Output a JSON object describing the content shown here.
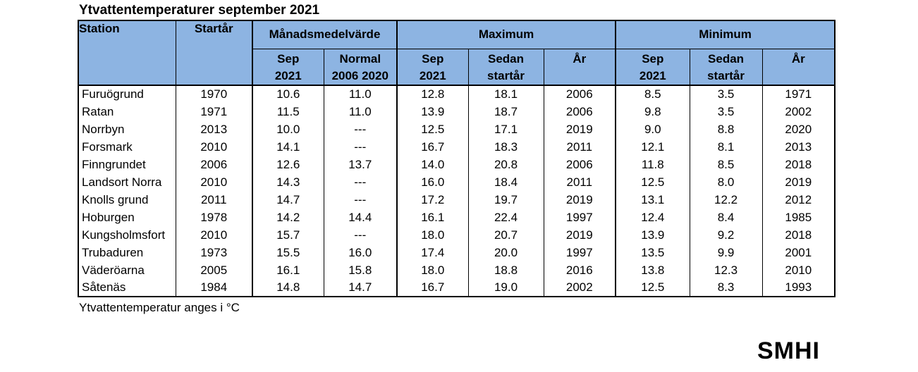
{
  "page": {
    "title": "Ytvattentemperaturer september 2021",
    "footer_note": "Ytvattentemperatur anges i °C",
    "logo_text": "SMHI"
  },
  "colors": {
    "header_bg": "#8DB4E2",
    "border": "#000000",
    "background": "#FFFFFF"
  },
  "header": {
    "station": "Station",
    "startyear": "Startår",
    "groups": [
      {
        "label": "Månadsmedelvärde"
      },
      {
        "label": "Maximum"
      },
      {
        "label": "Minimum"
      }
    ],
    "sub": [
      {
        "line1": "Sep",
        "line2": "2021"
      },
      {
        "line1": "Normal",
        "line2": "2006 2020"
      },
      {
        "line1": "Sep",
        "line2": "2021"
      },
      {
        "line1": "Sedan",
        "line2": "startår"
      },
      {
        "line1": "År",
        "line2": ""
      },
      {
        "line1": "Sep",
        "line2": "2021"
      },
      {
        "line1": "Sedan",
        "line2": "startår"
      },
      {
        "line1": "År",
        "line2": ""
      }
    ]
  },
  "chart_data": {
    "type": "table",
    "title": "Ytvattentemperaturer september 2021",
    "note": "Ytvattentemperatur anges i °C",
    "column_groups": [
      {
        "label": "",
        "span": [
          "Station",
          "Startår"
        ]
      },
      {
        "label": "Månadsmedelvärde",
        "span": [
          "Sep 2021",
          "Normal 2006 2020"
        ]
      },
      {
        "label": "Maximum",
        "span": [
          "Sep 2021",
          "Sedan startår",
          "År"
        ]
      },
      {
        "label": "Minimum",
        "span": [
          "Sep 2021",
          "Sedan startår",
          "År"
        ]
      }
    ],
    "columns": [
      "Station",
      "Startår",
      "Månadsmedelvärde Sep 2021",
      "Månadsmedelvärde Normal 2006 2020",
      "Maximum Sep 2021",
      "Maximum Sedan startår",
      "Maximum År",
      "Minimum Sep 2021",
      "Minimum Sedan startår",
      "Minimum År"
    ],
    "rows": [
      [
        "Furuögrund",
        "1970",
        "10.6",
        "11.0",
        "12.8",
        "18.1",
        "2006",
        "8.5",
        "3.5",
        "1971"
      ],
      [
        "Ratan",
        "1971",
        "11.5",
        "11.0",
        "13.9",
        "18.7",
        "2006",
        "9.8",
        "3.5",
        "2002"
      ],
      [
        "Norrbyn",
        "2013",
        "10.0",
        "---",
        "12.5",
        "17.1",
        "2019",
        "9.0",
        "8.8",
        "2020"
      ],
      [
        "Forsmark",
        "2010",
        "14.1",
        "---",
        "16.7",
        "18.3",
        "2011",
        "12.1",
        "8.1",
        "2013"
      ],
      [
        "Finngrundet",
        "2006",
        "12.6",
        "13.7",
        "14.0",
        "20.8",
        "2006",
        "11.8",
        "8.5",
        "2018"
      ],
      [
        "Landsort Norra",
        "2010",
        "14.3",
        "---",
        "16.0",
        "18.4",
        "2011",
        "12.5",
        "8.0",
        "2019"
      ],
      [
        "Knolls grund",
        "2011",
        "14.7",
        "---",
        "17.2",
        "19.7",
        "2019",
        "13.1",
        "12.2",
        "2012"
      ],
      [
        "Hoburgen",
        "1978",
        "14.2",
        "14.4",
        "16.1",
        "22.4",
        "1997",
        "12.4",
        "8.4",
        "1985"
      ],
      [
        "Kungsholmsfort",
        "2010",
        "15.7",
        "---",
        "18.0",
        "20.7",
        "2019",
        "13.9",
        "9.2",
        "2018"
      ],
      [
        "Trubaduren",
        "1973",
        "15.5",
        "16.0",
        "17.4",
        "20.0",
        "1997",
        "13.5",
        "9.9",
        "2001"
      ],
      [
        "Väderöarna",
        "2005",
        "16.1",
        "15.8",
        "18.0",
        "18.8",
        "2016",
        "13.8",
        "12.3",
        "2010"
      ],
      [
        "Såtenäs",
        "1984",
        "14.8",
        "14.7",
        "16.7",
        "19.0",
        "2002",
        "12.5",
        "8.3",
        "1993"
      ]
    ]
  }
}
